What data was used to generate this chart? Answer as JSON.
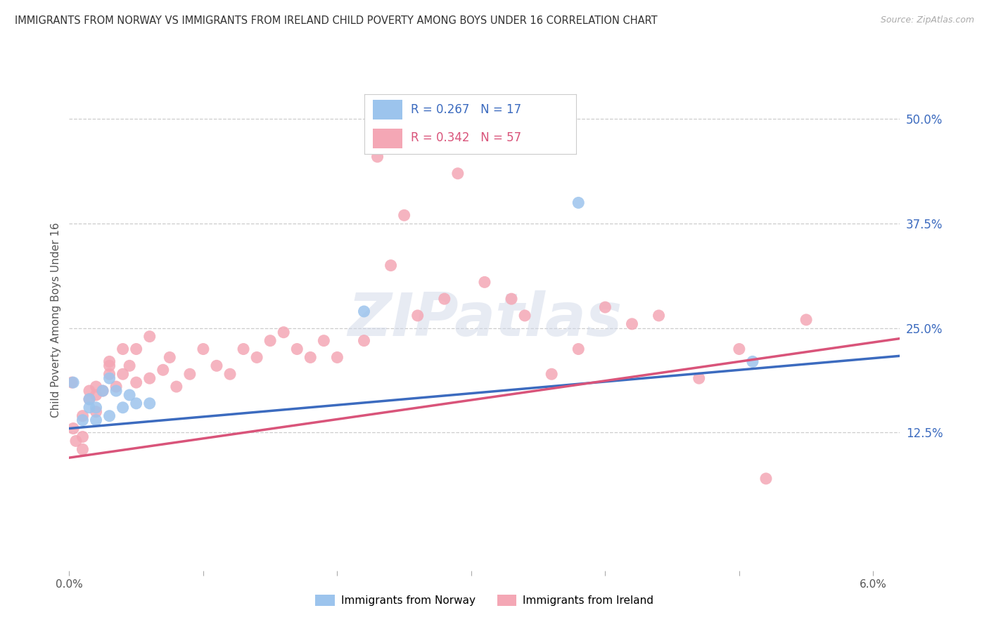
{
  "title": "IMMIGRANTS FROM NORWAY VS IMMIGRANTS FROM IRELAND CHILD POVERTY AMONG BOYS UNDER 16 CORRELATION CHART",
  "source": "Source: ZipAtlas.com",
  "ylabel": "Child Poverty Among Boys Under 16",
  "xlim": [
    0.0,
    0.062
  ],
  "ylim": [
    -0.04,
    0.56
  ],
  "xticks": [
    0.0,
    0.01,
    0.02,
    0.03,
    0.04,
    0.05,
    0.06
  ],
  "xticklabels": [
    "0.0%",
    "",
    "",
    "",
    "",
    "",
    "6.0%"
  ],
  "ytick_positions": [
    0.125,
    0.25,
    0.375,
    0.5
  ],
  "ytick_labels": [
    "12.5%",
    "25.0%",
    "37.5%",
    "50.0%"
  ],
  "norway_R": 0.267,
  "norway_N": 17,
  "ireland_R": 0.342,
  "ireland_N": 57,
  "norway_color": "#9cc4ed",
  "ireland_color": "#f4a7b5",
  "norway_line_color": "#3c6bbf",
  "ireland_line_color": "#d9547a",
  "background_color": "#ffffff",
  "grid_color": "#c8c8c8",
  "norway_points_x": [
    0.0003,
    0.001,
    0.0015,
    0.0015,
    0.002,
    0.002,
    0.0025,
    0.003,
    0.003,
    0.0035,
    0.004,
    0.0045,
    0.005,
    0.006,
    0.022,
    0.038,
    0.051
  ],
  "norway_points_y": [
    0.185,
    0.14,
    0.165,
    0.155,
    0.14,
    0.155,
    0.175,
    0.19,
    0.145,
    0.175,
    0.155,
    0.17,
    0.16,
    0.16,
    0.27,
    0.4,
    0.21
  ],
  "ireland_points_x": [
    0.0002,
    0.0003,
    0.0005,
    0.001,
    0.001,
    0.001,
    0.0015,
    0.0015,
    0.002,
    0.002,
    0.002,
    0.0025,
    0.003,
    0.003,
    0.003,
    0.0035,
    0.004,
    0.004,
    0.0045,
    0.005,
    0.005,
    0.006,
    0.006,
    0.007,
    0.0075,
    0.008,
    0.009,
    0.01,
    0.011,
    0.012,
    0.013,
    0.014,
    0.015,
    0.016,
    0.017,
    0.018,
    0.019,
    0.02,
    0.022,
    0.023,
    0.024,
    0.025,
    0.026,
    0.028,
    0.029,
    0.031,
    0.033,
    0.034,
    0.036,
    0.038,
    0.04,
    0.042,
    0.044,
    0.047,
    0.05,
    0.052,
    0.055
  ],
  "ireland_points_y": [
    0.185,
    0.13,
    0.115,
    0.145,
    0.12,
    0.105,
    0.175,
    0.165,
    0.18,
    0.17,
    0.15,
    0.175,
    0.205,
    0.195,
    0.21,
    0.18,
    0.225,
    0.195,
    0.205,
    0.185,
    0.225,
    0.24,
    0.19,
    0.2,
    0.215,
    0.18,
    0.195,
    0.225,
    0.205,
    0.195,
    0.225,
    0.215,
    0.235,
    0.245,
    0.225,
    0.215,
    0.235,
    0.215,
    0.235,
    0.455,
    0.325,
    0.385,
    0.265,
    0.285,
    0.435,
    0.305,
    0.285,
    0.265,
    0.195,
    0.225,
    0.275,
    0.255,
    0.265,
    0.19,
    0.225,
    0.07,
    0.26
  ],
  "watermark": "ZIPatlas",
  "norway_slope": 1.4,
  "norway_intercept": 0.13,
  "ireland_slope": 2.3,
  "ireland_intercept": 0.095
}
